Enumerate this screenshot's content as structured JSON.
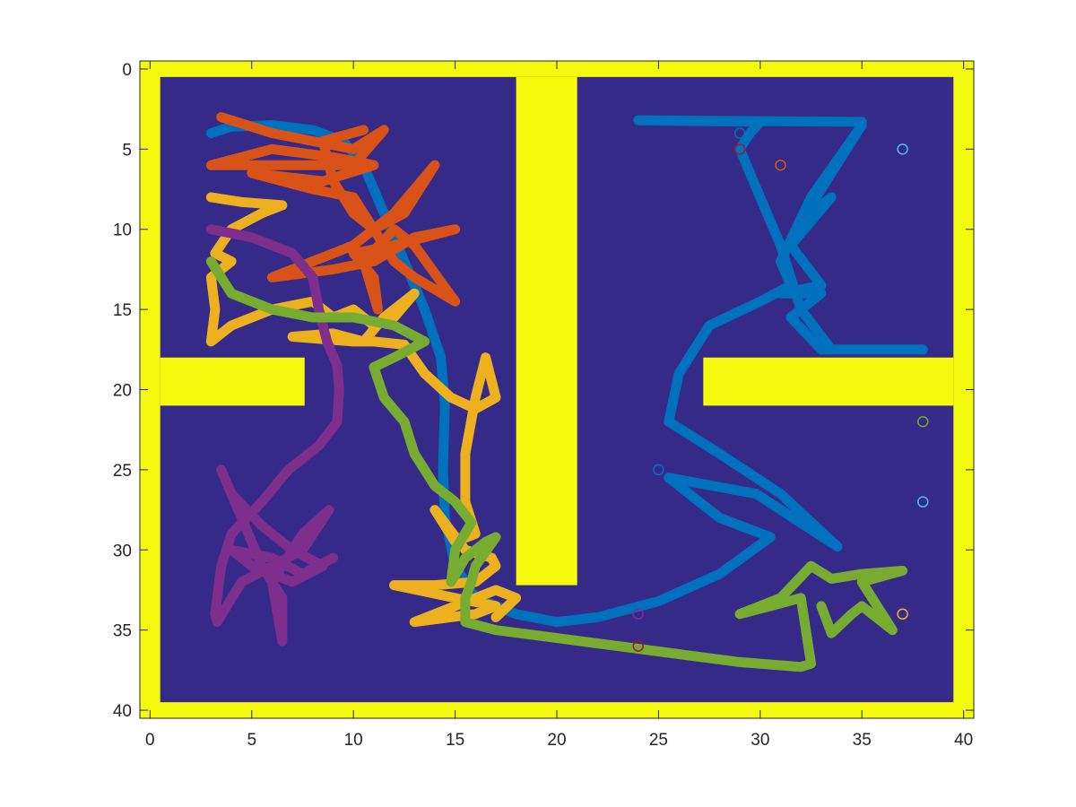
{
  "chart_data": {
    "type": "line",
    "title": "",
    "xlabel": "",
    "ylabel": "",
    "xlim": [
      -0.5,
      40.5
    ],
    "ylim": [
      -0.5,
      40.5
    ],
    "y_reversed": true,
    "grid": false,
    "x_ticks": [
      0,
      5,
      10,
      15,
      20,
      25,
      30,
      35,
      40
    ],
    "y_ticks": [
      0,
      5,
      10,
      15,
      20,
      25,
      30,
      35,
      40
    ],
    "map": {
      "wall_color": "#f4f90d",
      "floor_color": "#352a87",
      "floor_x": [
        0.5,
        39.5
      ],
      "floor_y": [
        0.5,
        39.5
      ],
      "walls": [
        {
          "x": [
            18.0,
            21.0
          ],
          "y": [
            0.5,
            32.2
          ]
        },
        {
          "x": [
            0.5,
            7.6
          ],
          "y": [
            18.0,
            21.0
          ]
        },
        {
          "x": [
            27.2,
            39.5
          ],
          "y": [
            18.0,
            21.0
          ]
        }
      ]
    },
    "series": [
      {
        "color": "#0072bd",
        "points": [
          [
            3,
            4
          ],
          [
            4,
            3.6
          ],
          [
            6,
            3.5
          ],
          [
            8,
            3.8
          ],
          [
            9.5,
            4.5
          ],
          [
            10.5,
            6
          ],
          [
            11.5,
            9
          ],
          [
            12.5,
            12
          ],
          [
            13.5,
            15
          ],
          [
            14.3,
            18
          ],
          [
            14.5,
            21
          ],
          [
            14.4,
            25
          ],
          [
            14.5,
            28
          ],
          [
            15,
            31
          ],
          [
            16,
            33
          ],
          [
            18,
            34
          ],
          [
            20,
            34.5
          ],
          [
            22,
            34.2
          ],
          [
            25,
            33.2
          ],
          [
            28,
            31.5
          ],
          [
            30.5,
            29.2
          ],
          [
            28,
            28
          ],
          [
            25.5,
            25.5
          ],
          [
            29.8,
            26.5
          ],
          [
            33.8,
            29.8
          ],
          [
            31,
            26.5
          ],
          [
            28,
            24
          ],
          [
            25.5,
            22
          ],
          [
            26,
            19
          ],
          [
            27.5,
            16
          ],
          [
            30,
            14.5
          ],
          [
            31.5,
            13.5
          ],
          [
            31,
            12
          ],
          [
            32.5,
            8
          ],
          [
            35,
            3.5
          ],
          [
            33.5,
            6.5
          ],
          [
            32,
            9.5
          ],
          [
            33.5,
            8
          ],
          [
            31.5,
            11
          ],
          [
            33,
            13.5
          ],
          [
            31,
            14
          ],
          [
            33,
            14
          ],
          [
            31.5,
            15.5
          ],
          [
            33,
            17.5
          ],
          [
            36,
            17.5
          ],
          [
            38,
            17.5
          ],
          [
            33.5,
            17.5
          ],
          [
            32,
            15
          ],
          [
            31,
            11
          ],
          [
            30,
            8
          ],
          [
            29,
            5
          ],
          [
            29.5,
            4
          ],
          [
            30,
            3.3
          ],
          [
            24,
            3.2
          ],
          [
            35,
            3.3
          ]
        ]
      },
      {
        "color": "#d95319",
        "points": [
          [
            3.5,
            3
          ],
          [
            6,
            4
          ],
          [
            8,
            4.5
          ],
          [
            10,
            5
          ],
          [
            11.5,
            3.8
          ],
          [
            10,
            6
          ],
          [
            7,
            6
          ],
          [
            3,
            6
          ],
          [
            6,
            5
          ],
          [
            9,
            5.5
          ],
          [
            11,
            6
          ],
          [
            8.5,
            7
          ],
          [
            5,
            6.5
          ],
          [
            8,
            7.5
          ],
          [
            10,
            8
          ],
          [
            11,
            10
          ],
          [
            12.5,
            9
          ],
          [
            14,
            6
          ],
          [
            12,
            9
          ],
          [
            10,
            11
          ],
          [
            8,
            12
          ],
          [
            6,
            13
          ],
          [
            9,
            12.5
          ],
          [
            11,
            12
          ],
          [
            13,
            10.5
          ],
          [
            15,
            10
          ],
          [
            12,
            11
          ],
          [
            10,
            11.5
          ],
          [
            11,
            13
          ],
          [
            11.2,
            15
          ],
          [
            10.5,
            12
          ],
          [
            12,
            10
          ],
          [
            13,
            11
          ],
          [
            15,
            14.5
          ],
          [
            13,
            13
          ],
          [
            12,
            12
          ],
          [
            11,
            10
          ],
          [
            10,
            9
          ],
          [
            9,
            7
          ],
          [
            8.5,
            4.5
          ],
          [
            10.5,
            3.8
          ]
        ]
      },
      {
        "color": "#edb120",
        "points": [
          [
            3,
            8
          ],
          [
            4.5,
            8.3
          ],
          [
            6.5,
            8.5
          ],
          [
            5.5,
            9
          ],
          [
            4,
            10
          ],
          [
            3.2,
            11.5
          ],
          [
            4,
            12
          ],
          [
            3,
            13
          ],
          [
            3.2,
            15
          ],
          [
            3,
            17
          ],
          [
            4,
            16
          ],
          [
            6,
            15
          ],
          [
            8,
            14.5
          ],
          [
            9,
            15.5
          ],
          [
            10,
            15
          ],
          [
            11,
            16
          ],
          [
            12,
            15.5
          ],
          [
            13,
            14
          ],
          [
            11.5,
            15.5
          ],
          [
            10.5,
            17
          ],
          [
            9,
            16.5
          ],
          [
            7,
            16.7
          ],
          [
            10,
            17
          ],
          [
            11,
            17
          ],
          [
            12.5,
            17.2
          ],
          [
            13.5,
            19
          ],
          [
            14.8,
            20.5
          ],
          [
            16,
            21.2
          ],
          [
            17,
            20.5
          ],
          [
            16.5,
            18
          ],
          [
            16,
            20.5
          ],
          [
            15.5,
            24
          ],
          [
            15.5,
            27
          ],
          [
            16,
            29
          ],
          [
            15,
            29.5
          ],
          [
            14,
            27.5
          ],
          [
            15.5,
            30
          ],
          [
            16.8,
            30.5
          ],
          [
            17,
            31
          ],
          [
            16,
            32
          ],
          [
            14,
            32.2
          ],
          [
            12,
            32.2
          ],
          [
            15,
            33
          ],
          [
            17,
            33.5
          ],
          [
            16,
            34
          ],
          [
            13,
            34.5
          ],
          [
            15,
            33.5
          ],
          [
            17,
            32.5
          ],
          [
            18,
            33
          ],
          [
            17,
            34.2
          ]
        ]
      },
      {
        "color": "#7e2f8e",
        "points": [
          [
            3,
            10
          ],
          [
            5,
            10.5
          ],
          [
            7,
            11.5
          ],
          [
            8,
            13
          ],
          [
            8.3,
            15
          ],
          [
            8.7,
            17
          ],
          [
            9.2,
            18.5
          ],
          [
            9.3,
            20
          ],
          [
            9.2,
            22
          ],
          [
            8.3,
            23.5
          ],
          [
            6.8,
            25
          ],
          [
            5.5,
            27
          ],
          [
            4,
            29
          ],
          [
            3.5,
            31
          ],
          [
            3.2,
            34
          ],
          [
            3.3,
            34.5
          ],
          [
            4.5,
            32
          ],
          [
            6,
            31
          ],
          [
            7.5,
            30
          ],
          [
            8.8,
            27.5
          ],
          [
            7.5,
            29
          ],
          [
            6,
            32
          ],
          [
            6.5,
            35.7
          ],
          [
            6.5,
            33
          ],
          [
            5.5,
            31
          ],
          [
            4.5,
            28
          ],
          [
            3.5,
            25
          ],
          [
            4,
            26.5
          ],
          [
            5.5,
            28.5
          ],
          [
            7,
            30
          ],
          [
            8.5,
            31
          ],
          [
            7,
            32
          ],
          [
            5,
            31
          ],
          [
            4,
            30
          ],
          [
            6,
            30.5
          ],
          [
            7.5,
            31.5
          ],
          [
            9,
            30.5
          ]
        ]
      },
      {
        "color": "#77ac30",
        "points": [
          [
            3,
            12
          ],
          [
            4,
            14
          ],
          [
            5,
            14.5
          ],
          [
            6,
            15
          ],
          [
            8,
            15.5
          ],
          [
            10,
            15.5
          ],
          [
            12,
            16
          ],
          [
            13.5,
            17
          ],
          [
            12,
            18
          ],
          [
            11,
            18.6
          ],
          [
            11.5,
            20.5
          ],
          [
            12.5,
            22
          ],
          [
            13,
            24
          ],
          [
            14,
            26
          ],
          [
            15,
            27
          ],
          [
            15.8,
            28.3
          ],
          [
            15,
            30
          ],
          [
            14.8,
            32
          ],
          [
            15.5,
            30.5
          ],
          [
            16.5,
            29.5
          ],
          [
            17,
            29.2
          ],
          [
            16,
            31
          ],
          [
            15.8,
            32
          ],
          [
            15.5,
            33
          ],
          [
            15.5,
            34.5
          ],
          [
            17,
            35
          ],
          [
            20,
            35.5
          ],
          [
            23,
            36
          ],
          [
            26,
            36.5
          ],
          [
            29,
            37
          ],
          [
            32,
            37.3
          ],
          [
            32.5,
            37.1
          ],
          [
            32,
            33
          ],
          [
            30.5,
            33.5
          ],
          [
            29,
            34
          ],
          [
            31,
            33
          ],
          [
            32.5,
            31
          ],
          [
            33.5,
            31.8
          ],
          [
            35,
            31.5
          ],
          [
            37,
            31.3
          ],
          [
            35,
            32
          ],
          [
            36.5,
            35
          ],
          [
            35,
            33.5
          ],
          [
            34.5,
            34
          ],
          [
            33.5,
            35.2
          ],
          [
            33,
            33.5
          ]
        ]
      }
    ],
    "markers": [
      {
        "x": 29,
        "y": 4,
        "color": "#0072bd"
      },
      {
        "x": 29,
        "y": 5,
        "color": "#a2142f"
      },
      {
        "x": 31,
        "y": 6,
        "color": "#d95319"
      },
      {
        "x": 37,
        "y": 5,
        "color": "#4dbeee"
      },
      {
        "x": 38,
        "y": 22,
        "color": "#77ac30"
      },
      {
        "x": 25,
        "y": 25,
        "color": "#0072bd"
      },
      {
        "x": 38,
        "y": 27,
        "color": "#4dbeee"
      },
      {
        "x": 37,
        "y": 34,
        "color": "#edb120"
      },
      {
        "x": 24,
        "y": 34,
        "color": "#7e2f8e"
      },
      {
        "x": 24,
        "y": 36,
        "color": "#a2142f"
      }
    ]
  }
}
